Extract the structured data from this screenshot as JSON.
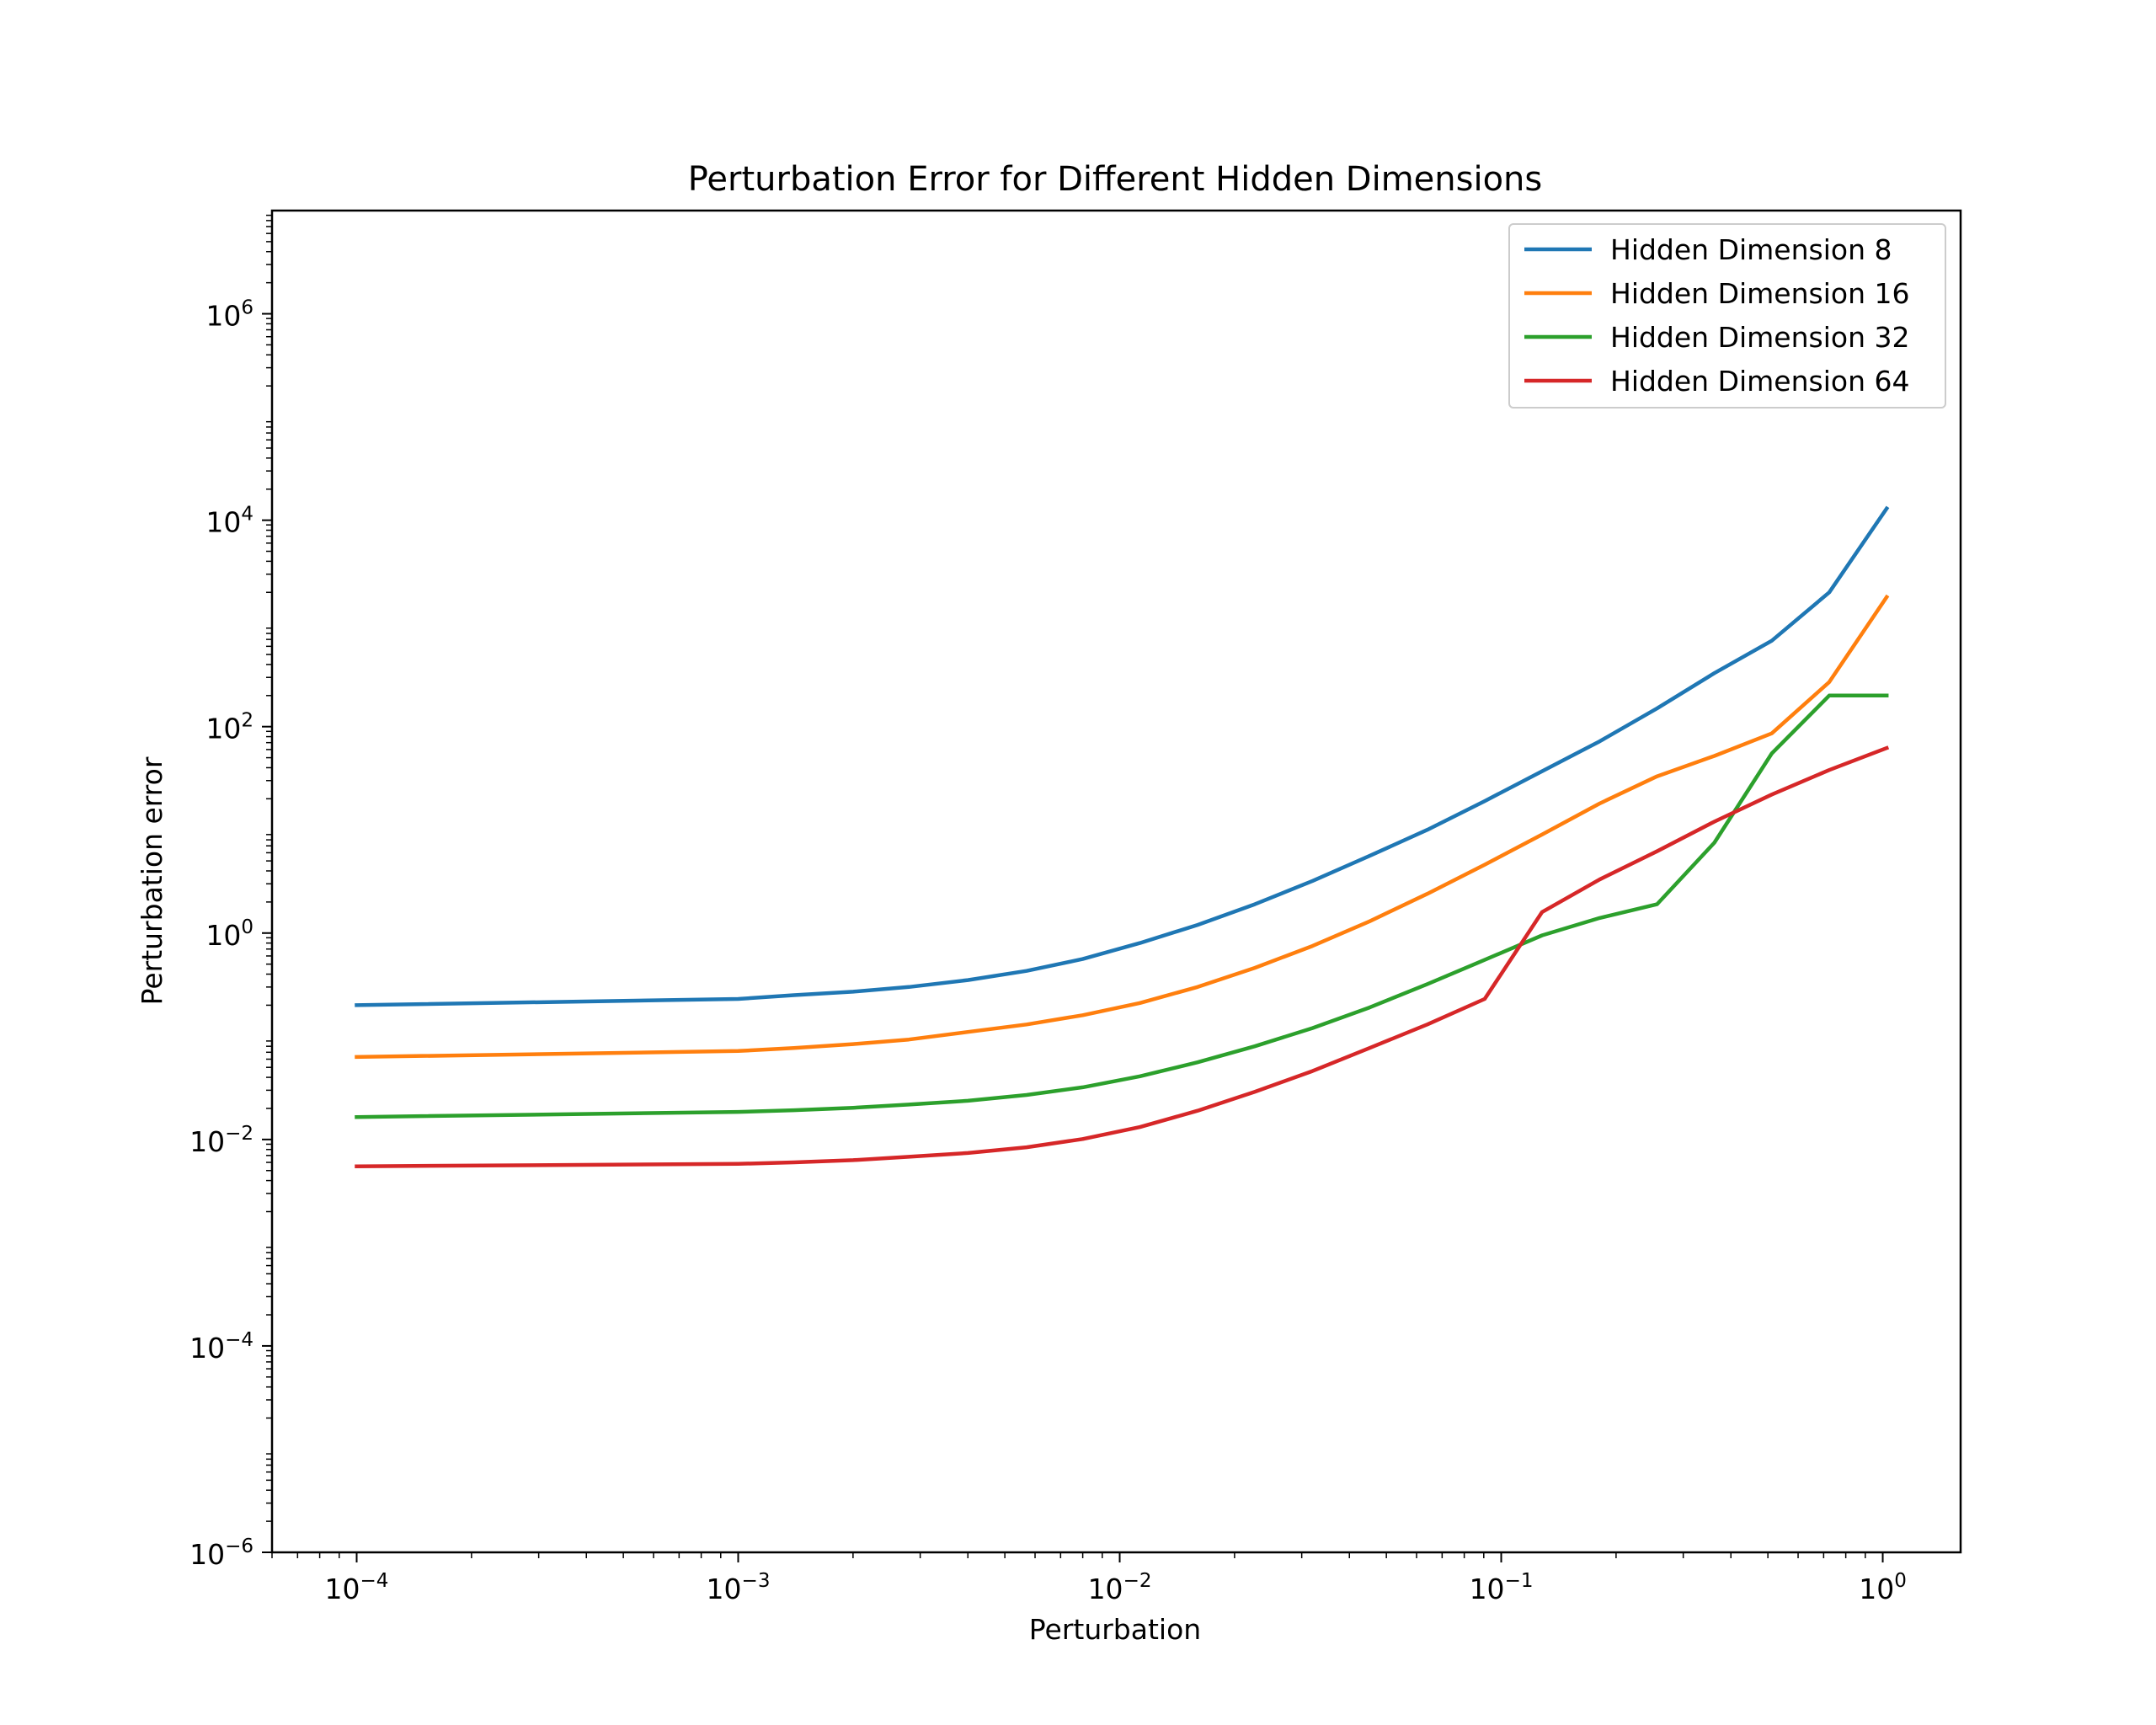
{
  "chart_data": {
    "type": "line",
    "title": "Perturbation Error for Different Hidden Dimensions",
    "xlabel": "Perturbation",
    "ylabel": "Perturbation error",
    "xscale": "log",
    "yscale": "log",
    "xlim": [
      6e-05,
      1.6
    ],
    "ylim": [
      1e-06,
      10000000.0
    ],
    "x_ticks": [
      {
        "value": 0.0001,
        "base": "10",
        "exp": "−4"
      },
      {
        "value": 0.001,
        "base": "10",
        "exp": "−3"
      },
      {
        "value": 0.01,
        "base": "10",
        "exp": "−2"
      },
      {
        "value": 0.1,
        "base": "10",
        "exp": "−1"
      },
      {
        "value": 1,
        "base": "10",
        "exp": "0"
      }
    ],
    "y_ticks": [
      {
        "value": 1e-06,
        "base": "10",
        "exp": "−6"
      },
      {
        "value": 0.0001,
        "base": "10",
        "exp": "−4"
      },
      {
        "value": 0.01,
        "base": "10",
        "exp": "−2"
      },
      {
        "value": 1,
        "base": "10",
        "exp": "0"
      },
      {
        "value": 100.0,
        "base": "10",
        "exp": "2"
      },
      {
        "value": 10000.0,
        "base": "10",
        "exp": "4"
      },
      {
        "value": 1000000.0,
        "base": "10",
        "exp": "6"
      }
    ],
    "grid": false,
    "legend_position": "top-right",
    "series": [
      {
        "name": "Hidden Dimension 8",
        "color": "#1f77b4",
        "points": [
          [
            0.0001,
            0.2
          ],
          [
            0.001,
            0.23
          ],
          [
            0.0014,
            0.25
          ],
          [
            0.002,
            0.27
          ],
          [
            0.0028,
            0.3
          ],
          [
            0.004,
            0.35
          ],
          [
            0.0057,
            0.43
          ],
          [
            0.008,
            0.56
          ],
          [
            0.0113,
            0.8
          ],
          [
            0.016,
            1.2
          ],
          [
            0.0226,
            1.9
          ],
          [
            0.032,
            3.2
          ],
          [
            0.0452,
            5.6
          ],
          [
            0.064,
            10
          ],
          [
            0.0905,
            19
          ],
          [
            0.128,
            37
          ],
          [
            0.181,
            72
          ],
          [
            0.256,
            150
          ],
          [
            0.362,
            330
          ],
          [
            0.512,
            680
          ],
          [
            0.724,
            2000
          ],
          [
            1.024,
            13000
          ]
        ]
      },
      {
        "name": "Hidden Dimension 16",
        "color": "#ff7f0e",
        "points": [
          [
            0.0001,
            0.063
          ],
          [
            0.001,
            0.072
          ],
          [
            0.0014,
            0.077
          ],
          [
            0.002,
            0.084
          ],
          [
            0.0028,
            0.093
          ],
          [
            0.004,
            0.11
          ],
          [
            0.0057,
            0.13
          ],
          [
            0.008,
            0.16
          ],
          [
            0.0113,
            0.21
          ],
          [
            0.016,
            0.3
          ],
          [
            0.0226,
            0.46
          ],
          [
            0.032,
            0.75
          ],
          [
            0.0452,
            1.3
          ],
          [
            0.064,
            2.4
          ],
          [
            0.0905,
            4.6
          ],
          [
            0.128,
            9
          ],
          [
            0.181,
            18
          ],
          [
            0.256,
            33
          ],
          [
            0.362,
            52
          ],
          [
            0.512,
            86
          ],
          [
            0.724,
            270
          ],
          [
            1.024,
            1800
          ]
        ]
      },
      {
        "name": "Hidden Dimension 32",
        "color": "#2ca02c",
        "points": [
          [
            0.0001,
            0.0165
          ],
          [
            0.001,
            0.0185
          ],
          [
            0.0014,
            0.0192
          ],
          [
            0.002,
            0.0203
          ],
          [
            0.0028,
            0.0218
          ],
          [
            0.004,
            0.0237
          ],
          [
            0.0057,
            0.027
          ],
          [
            0.008,
            0.032
          ],
          [
            0.0113,
            0.041
          ],
          [
            0.016,
            0.056
          ],
          [
            0.0226,
            0.08
          ],
          [
            0.032,
            0.12
          ],
          [
            0.0452,
            0.19
          ],
          [
            0.064,
            0.32
          ],
          [
            0.0905,
            0.55
          ],
          [
            0.128,
            0.95
          ],
          [
            0.181,
            1.4
          ],
          [
            0.256,
            1.9
          ],
          [
            0.362,
            7.5
          ],
          [
            0.512,
            55
          ],
          [
            0.724,
            200
          ],
          [
            1.024,
            200
          ]
        ]
      },
      {
        "name": "Hidden Dimension 64",
        "color": "#d62728",
        "points": [
          [
            0.0001,
            0.0055
          ],
          [
            0.001,
            0.0058
          ],
          [
            0.0014,
            0.006
          ],
          [
            0.002,
            0.0063
          ],
          [
            0.0028,
            0.0068
          ],
          [
            0.004,
            0.0074
          ],
          [
            0.0057,
            0.0084
          ],
          [
            0.008,
            0.0101
          ],
          [
            0.0113,
            0.0132
          ],
          [
            0.016,
            0.019
          ],
          [
            0.0226,
            0.029
          ],
          [
            0.032,
            0.046
          ],
          [
            0.0452,
            0.077
          ],
          [
            0.064,
            0.13
          ],
          [
            0.0905,
            0.23
          ],
          [
            0.128,
            1.6
          ],
          [
            0.181,
            3.3
          ],
          [
            0.256,
            6.2
          ],
          [
            0.362,
            12
          ],
          [
            0.512,
            22
          ],
          [
            0.724,
            38
          ],
          [
            1.024,
            62
          ]
        ]
      }
    ]
  }
}
